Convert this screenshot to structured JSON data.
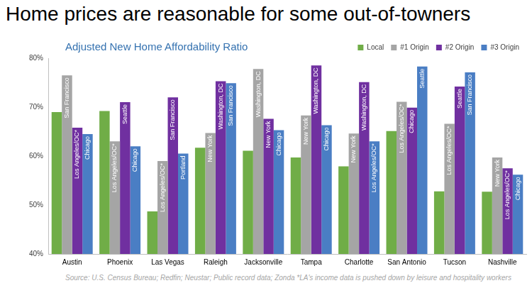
{
  "heading": "Home prices are reasonable for some out-of-towners",
  "chart_data": {
    "type": "bar",
    "title": "Adjusted New Home Affordability Ratio",
    "categories": [
      "Austin",
      "Phoenix",
      "Las Vegas",
      "Raleigh",
      "Jacksonville",
      "Tampa",
      "Charlotte",
      "San Antonio",
      "Tucson",
      "Nashville"
    ],
    "series": [
      {
        "name": "Local",
        "color": "#70ad47",
        "values": [
          69,
          69.2,
          48.7,
          61.7,
          61.1,
          59.7,
          57.9,
          65.1,
          52.8,
          52.7
        ]
      },
      {
        "name": "#1 Origin",
        "color": "#a5a5a5",
        "values": [
          76.5,
          63,
          59,
          64.7,
          77.8,
          68.3,
          64.6,
          71.1,
          66.6,
          59.7
        ],
        "bar_labels": [
          "San Francisco",
          "Los Angeles/OC*",
          "Los Angeles/OC*",
          "New York",
          "Washington, DC",
          "New York",
          "New York",
          "Los Angeles/OC*",
          "Los Angeles/OC*",
          "New York"
        ]
      },
      {
        "name": "#2 Origin",
        "color": "#7030a0",
        "values": [
          65.8,
          71,
          72,
          75.3,
          67.6,
          78.5,
          75.1,
          69.9,
          74.2,
          57.5
        ],
        "bar_labels": [
          "Los Angeles/OC*",
          "Seattle",
          "San Francisco",
          "Washington, DC",
          "New York",
          "Washington, DC",
          "Washington, DC",
          "Chicago",
          "Seattle",
          "Los Angeles/OC*"
        ]
      },
      {
        "name": "#3 Origin",
        "color": "#4a7ec4",
        "values": [
          64.5,
          62,
          60.5,
          74.9,
          65.3,
          66.3,
          63,
          78.3,
          77.1,
          56.2
        ],
        "bar_labels": [
          "Chicago",
          "Chicago",
          "Portland",
          "San Francisco",
          "Chicago",
          "Chicago",
          "Los Angeles/OC*",
          "Seattle",
          "San Francisco",
          "Chicago"
        ]
      }
    ],
    "ylim": [
      40,
      80
    ],
    "yticks": [
      {
        "value": 40,
        "label": "40%"
      },
      {
        "value": 50,
        "label": "50%"
      },
      {
        "value": 60,
        "label": "60%"
      },
      {
        "value": 70,
        "label": "70%"
      },
      {
        "value": 80,
        "label": "80%"
      }
    ],
    "grid": false,
    "legend": "upper right",
    "source": "Source: U.S. Census Bureau; Redfin; Neustar; Public record data; Zonda",
    "note": "*LA's income data is pushed down by leisure and hospitality workers"
  }
}
